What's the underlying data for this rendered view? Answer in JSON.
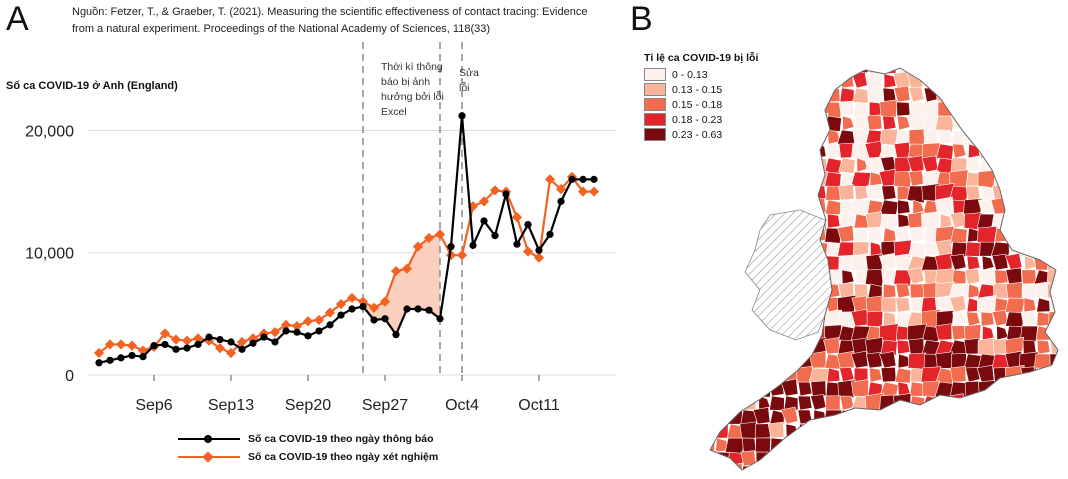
{
  "panel_a": {
    "letter": "A",
    "source": "Nguồn: Fetzer, T., & Graeber, T. (2021). Measuring the scientific effectiveness of contact tracing: Evidence from a natural experiment. Proceedings of the National Academy of Sciences, 118(33)",
    "annotation_period": "Thời kì thông báo bị ảnh hưởng bởi lỗi Excel",
    "annotation_fix": "Sửa lỗi"
  },
  "panel_b": {
    "letter": "B",
    "legend_title": "Tỉ lệ ca COVID-19 bị lỗi",
    "legend_items": [
      {
        "label": "0 - 0.13",
        "color": "#fdf1ee"
      },
      {
        "label": "0.13 - 0.15",
        "color": "#f9b49a"
      },
      {
        "label": "0.15 - 0.18",
        "color": "#f26d4f"
      },
      {
        "label": "0.18 - 0.23",
        "color": "#e3242b"
      },
      {
        "label": "0.23 - 0.63",
        "color": "#7a0a0e"
      }
    ],
    "hatch_color": "#9a9a9a"
  },
  "chart_data": {
    "type": "line",
    "ylabel": "Số ca COVID-19 ở Anh (England)",
    "ylim": [
      0,
      22000
    ],
    "yticks": [
      {
        "value": 0,
        "label": "0"
      },
      {
        "value": 10000,
        "label": "10,000"
      },
      {
        "value": 20000,
        "label": "20,000"
      }
    ],
    "x_start": "2020-08-31",
    "x_end": "2020-10-18",
    "xticks": [
      {
        "date": "2020-09-06",
        "label": "Sep6"
      },
      {
        "date": "2020-09-13",
        "label": "Sep13"
      },
      {
        "date": "2020-09-20",
        "label": "Sep20"
      },
      {
        "date": "2020-09-27",
        "label": "Sep27"
      },
      {
        "date": "2020-10-04",
        "label": "Oct4"
      },
      {
        "date": "2020-10-11",
        "label": "Oct11"
      }
    ],
    "vlines": [
      "2020-09-25",
      "2020-10-02",
      "2020-10-04"
    ],
    "grid": true,
    "legend_position": "bottom",
    "series": [
      {
        "name": "Số ca COVID-19 theo ngày thông báo",
        "color": "#000000",
        "marker": "circle",
        "x": [
          "2020-09-01",
          "2020-09-02",
          "2020-09-03",
          "2020-09-04",
          "2020-09-05",
          "2020-09-06",
          "2020-09-07",
          "2020-09-08",
          "2020-09-09",
          "2020-09-10",
          "2020-09-11",
          "2020-09-12",
          "2020-09-13",
          "2020-09-14",
          "2020-09-15",
          "2020-09-16",
          "2020-09-17",
          "2020-09-18",
          "2020-09-19",
          "2020-09-20",
          "2020-09-21",
          "2020-09-22",
          "2020-09-23",
          "2020-09-24",
          "2020-09-25",
          "2020-09-26",
          "2020-09-27",
          "2020-09-28",
          "2020-09-29",
          "2020-09-30",
          "2020-10-01",
          "2020-10-02",
          "2020-10-03",
          "2020-10-04",
          "2020-10-05",
          "2020-10-06",
          "2020-10-07",
          "2020-10-08",
          "2020-10-09",
          "2020-10-10",
          "2020-10-11",
          "2020-10-12",
          "2020-10-13",
          "2020-10-14",
          "2020-10-15",
          "2020-10-16"
        ],
        "values": [
          1000,
          1200,
          1400,
          1600,
          1500,
          2400,
          2500,
          2100,
          2200,
          2500,
          3100,
          2900,
          2700,
          2100,
          2600,
          3100,
          2700,
          3600,
          3500,
          3200,
          3600,
          4100,
          4900,
          5400,
          5600,
          4500,
          4600,
          3300,
          5400,
          5400,
          5300,
          4600,
          10500,
          21200,
          10600,
          12600,
          11400,
          14800,
          10700,
          12300,
          10200,
          11500,
          14200,
          16000,
          16000,
          16000
        ]
      },
      {
        "name": "Số ca COVID-19 theo ngày xét nghiệm",
        "color": "#f26222",
        "marker": "diamond",
        "x": [
          "2020-09-01",
          "2020-09-02",
          "2020-09-03",
          "2020-09-04",
          "2020-09-05",
          "2020-09-06",
          "2020-09-07",
          "2020-09-08",
          "2020-09-09",
          "2020-09-10",
          "2020-09-11",
          "2020-09-12",
          "2020-09-13",
          "2020-09-14",
          "2020-09-15",
          "2020-09-16",
          "2020-09-17",
          "2020-09-18",
          "2020-09-19",
          "2020-09-20",
          "2020-09-21",
          "2020-09-22",
          "2020-09-23",
          "2020-09-24",
          "2020-09-25",
          "2020-09-26",
          "2020-09-27",
          "2020-09-28",
          "2020-09-29",
          "2020-09-30",
          "2020-10-01",
          "2020-10-02",
          "2020-10-03",
          "2020-10-04",
          "2020-10-05",
          "2020-10-06",
          "2020-10-07",
          "2020-10-08",
          "2020-10-09",
          "2020-10-10",
          "2020-10-11",
          "2020-10-12",
          "2020-10-13",
          "2020-10-14",
          "2020-10-15",
          "2020-10-16"
        ],
        "values": [
          1800,
          2500,
          2500,
          2400,
          2000,
          2300,
          3400,
          2900,
          2800,
          3000,
          2800,
          2200,
          1800,
          2700,
          3000,
          3400,
          3500,
          4100,
          4000,
          4400,
          4500,
          5100,
          5800,
          6300,
          6000,
          5500,
          6000,
          8500,
          8700,
          10500,
          11200,
          11500,
          9800,
          9800,
          13800,
          14200,
          15100,
          15000,
          12900,
          10100,
          9600,
          16000,
          15200,
          16200,
          15000,
          15000
        ]
      }
    ]
  }
}
